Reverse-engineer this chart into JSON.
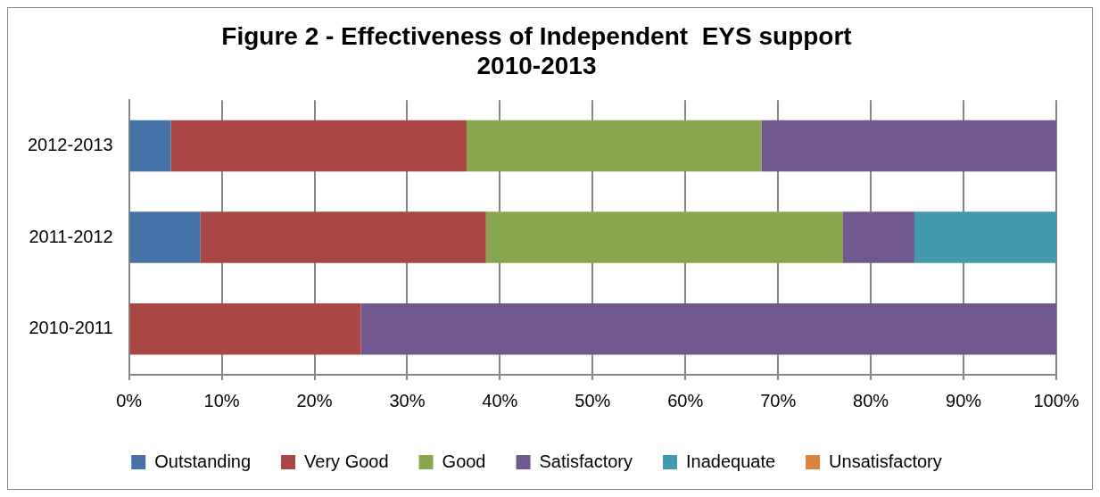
{
  "chart_data": {
    "type": "bar",
    "orientation": "horizontal",
    "stacked": true,
    "title": "Figure 2 - Effectiveness of Independent  EYS support 2010-2013",
    "categories": [
      "2012-2013",
      "2011-2012",
      "2010-2011"
    ],
    "series": [
      {
        "name": "Outstanding",
        "color": "#4572a7",
        "values": [
          4.5,
          7.7,
          0
        ]
      },
      {
        "name": "Very Good",
        "color": "#aa4643",
        "values": [
          31.9,
          30.8,
          25
        ]
      },
      {
        "name": "Good",
        "color": "#89a54e",
        "values": [
          31.8,
          38.5,
          0
        ]
      },
      {
        "name": "Satisfactory",
        "color": "#71588f",
        "values": [
          31.8,
          7.7,
          75
        ]
      },
      {
        "name": "Inadequate",
        "color": "#4198af",
        "values": [
          0,
          15.3,
          0
        ]
      },
      {
        "name": "Unsatisfactory",
        "color": "#db843d",
        "values": [
          0,
          0,
          0
        ]
      }
    ],
    "xlim": [
      0,
      100
    ],
    "xticks": [
      {
        "value": 0,
        "label": "0%"
      },
      {
        "value": 10,
        "label": "10%"
      },
      {
        "value": 20,
        "label": "20%"
      },
      {
        "value": 30,
        "label": "30%"
      },
      {
        "value": 40,
        "label": "40%"
      },
      {
        "value": 50,
        "label": "50%"
      },
      {
        "value": 60,
        "label": "60%"
      },
      {
        "value": 70,
        "label": "70%"
      },
      {
        "value": 80,
        "label": "80%"
      },
      {
        "value": 90,
        "label": "90%"
      },
      {
        "value": 100,
        "label": "100%"
      }
    ],
    "grid": "x",
    "legend": "bottom"
  }
}
